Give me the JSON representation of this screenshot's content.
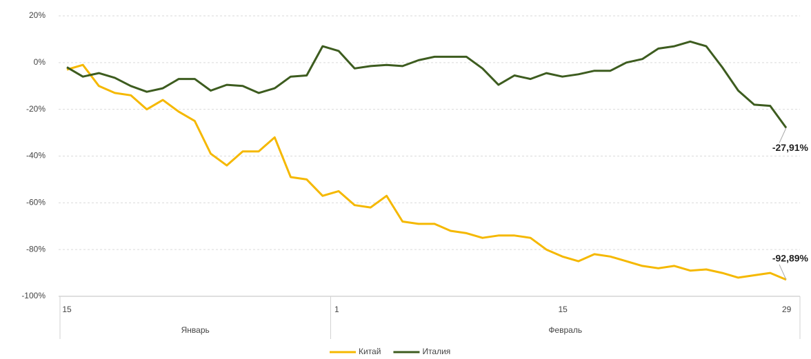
{
  "chart_data": {
    "type": "line",
    "categories": [
      "15",
      null,
      null,
      null,
      null,
      null,
      null,
      null,
      null,
      null,
      null,
      null,
      null,
      null,
      null,
      null,
      null,
      "1",
      null,
      null,
      null,
      null,
      null,
      null,
      null,
      null,
      null,
      null,
      null,
      null,
      null,
      "15",
      null,
      null,
      null,
      null,
      null,
      null,
      null,
      null,
      null,
      null,
      null,
      null,
      null,
      "29"
    ],
    "category_groups": [
      {
        "label": "Январь",
        "count": 17
      },
      {
        "label": "Февраль",
        "count": 29
      }
    ],
    "series": [
      {
        "name": "Китай",
        "color": "#f5b800",
        "values": [
          -3,
          -1,
          -10,
          -13,
          -14,
          -20,
          -16,
          -21,
          -25,
          -39,
          -44,
          -38,
          -38,
          -32,
          -49,
          -50,
          -57,
          -55,
          -61,
          -62,
          -57,
          -68,
          -69,
          -69,
          -72,
          -73,
          -75,
          -74,
          -74,
          -75,
          -80,
          -83,
          -85,
          -82,
          -83,
          -85,
          -87,
          -88,
          -87,
          -89,
          -88.5,
          -90,
          -92,
          -91,
          -90,
          -92.89
        ],
        "value_labels": [
          null,
          null,
          null,
          null,
          null,
          null,
          null,
          null,
          null,
          null,
          null,
          null,
          null,
          null,
          null,
          null,
          null,
          null,
          null,
          null,
          null,
          null,
          null,
          null,
          null,
          null,
          null,
          null,
          null,
          null,
          null,
          null,
          null,
          null,
          null,
          null,
          null,
          null,
          null,
          null,
          null,
          null,
          null,
          null,
          null,
          "-92,89%"
        ]
      },
      {
        "name": "Италия",
        "color": "#3d5c1f",
        "values": [
          -2,
          -6,
          -4.5,
          -6.5,
          -10,
          -12.5,
          -11,
          -7,
          -7,
          -12,
          -9.5,
          -10,
          -13,
          -11,
          -6,
          -5.5,
          7,
          5,
          -2.5,
          -1.5,
          -1,
          -1.5,
          1,
          2.5,
          2.5,
          2.5,
          -2.5,
          -9.5,
          -5.5,
          -7,
          -4.5,
          -6,
          -5,
          -3.5,
          -3.5,
          0,
          1.5,
          6,
          7,
          9,
          7,
          -2,
          -12,
          -18,
          -18.5,
          -27.91
        ],
        "value_labels": [
          null,
          null,
          null,
          null,
          null,
          null,
          null,
          null,
          null,
          null,
          null,
          null,
          null,
          null,
          null,
          null,
          null,
          null,
          null,
          null,
          null,
          null,
          null,
          null,
          null,
          null,
          null,
          null,
          null,
          null,
          null,
          null,
          null,
          null,
          null,
          null,
          null,
          null,
          null,
          null,
          null,
          null,
          null,
          null,
          null,
          "-27,91%"
        ]
      }
    ],
    "ylim": [
      -100,
      20
    ],
    "yticks": [
      {
        "value": -100,
        "label": "-100%"
      },
      {
        "value": -80,
        "label": "-80%"
      },
      {
        "value": -60,
        "label": "-60%"
      },
      {
        "value": -40,
        "label": "-40%"
      },
      {
        "value": -20,
        "label": "-20%"
      },
      {
        "value": 0,
        "label": "0%"
      },
      {
        "value": 20,
        "label": "20%"
      }
    ],
    "grid": true,
    "legend": "bottom"
  }
}
